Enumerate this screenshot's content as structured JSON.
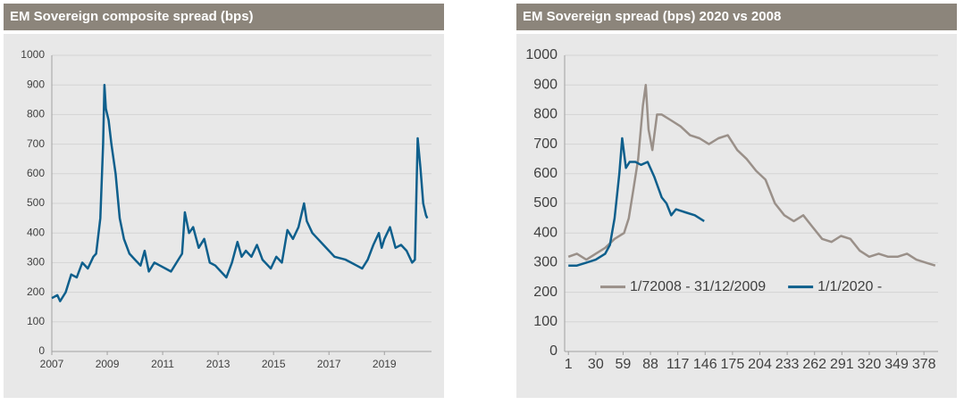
{
  "chart_data": [
    {
      "type": "line",
      "title": "EM Sovereign composite spread (bps)",
      "xlim": [
        2007,
        2020.7
      ],
      "xticks": [
        2007,
        2009,
        2011,
        2013,
        2015,
        2017,
        2019
      ],
      "ylim": [
        0,
        1000
      ],
      "yticks": [
        0,
        100,
        200,
        300,
        400,
        500,
        600,
        700,
        800,
        900,
        1000
      ],
      "grid": true,
      "series": [
        {
          "color": "#0e5f8c",
          "x": [
            2007.0,
            2007.2,
            2007.3,
            2007.5,
            2007.7,
            2007.9,
            2008.1,
            2008.3,
            2008.5,
            2008.6,
            2008.75,
            2008.85,
            2008.9,
            2008.95,
            2009.05,
            2009.15,
            2009.3,
            2009.45,
            2009.6,
            2009.8,
            2010.0,
            2010.2,
            2010.35,
            2010.5,
            2010.7,
            2010.9,
            2011.1,
            2011.3,
            2011.5,
            2011.7,
            2011.8,
            2011.95,
            2012.1,
            2012.3,
            2012.5,
            2012.7,
            2012.9,
            2013.1,
            2013.3,
            2013.5,
            2013.7,
            2013.85,
            2014.0,
            2014.2,
            2014.4,
            2014.6,
            2014.8,
            2014.9,
            2015.1,
            2015.3,
            2015.5,
            2015.7,
            2015.9,
            2016.1,
            2016.2,
            2016.4,
            2016.6,
            2016.8,
            2017.0,
            2017.2,
            2017.4,
            2017.6,
            2017.8,
            2018.0,
            2018.2,
            2018.4,
            2018.6,
            2018.8,
            2018.9,
            2019.0,
            2019.2,
            2019.4,
            2019.6,
            2019.8,
            2020.0,
            2020.1,
            2020.2,
            2020.3,
            2020.4,
            2020.5,
            2020.55
          ],
          "values": [
            180,
            190,
            170,
            200,
            260,
            250,
            300,
            280,
            320,
            330,
            450,
            700,
            900,
            820,
            780,
            700,
            600,
            450,
            380,
            330,
            310,
            290,
            340,
            270,
            300,
            290,
            280,
            270,
            300,
            330,
            470,
            400,
            420,
            350,
            380,
            300,
            290,
            270,
            250,
            300,
            370,
            320,
            340,
            320,
            360,
            310,
            290,
            280,
            320,
            300,
            410,
            380,
            420,
            500,
            440,
            400,
            380,
            360,
            340,
            320,
            315,
            310,
            300,
            290,
            280,
            310,
            360,
            400,
            350,
            380,
            420,
            350,
            360,
            340,
            300,
            310,
            720,
            620,
            500,
            460,
            450
          ]
        }
      ]
    },
    {
      "type": "line",
      "title": "EM Sovereign spread (bps) 2020 vs 2008",
      "xlim": [
        -3,
        393
      ],
      "xticks": [
        1,
        30,
        59,
        88,
        117,
        146,
        175,
        204,
        233,
        262,
        291,
        320,
        349,
        378
      ],
      "ylim": [
        0,
        1000
      ],
      "yticks": [
        0,
        100,
        200,
        300,
        400,
        500,
        600,
        700,
        800,
        900,
        1000
      ],
      "grid": true,
      "legend": "lower left",
      "series": [
        {
          "name": "1/72008 - 31/12/2009",
          "color": "#9a9089",
          "x": [
            1,
            10,
            20,
            30,
            40,
            50,
            60,
            65,
            70,
            75,
            80,
            83,
            86,
            90,
            95,
            100,
            110,
            120,
            130,
            140,
            150,
            160,
            170,
            180,
            190,
            200,
            210,
            220,
            230,
            240,
            250,
            260,
            270,
            280,
            290,
            300,
            310,
            320,
            330,
            340,
            350,
            360,
            370,
            380,
            390
          ],
          "values": [
            320,
            330,
            310,
            330,
            350,
            380,
            400,
            450,
            550,
            650,
            830,
            900,
            750,
            680,
            800,
            800,
            780,
            760,
            730,
            720,
            700,
            720,
            730,
            680,
            650,
            610,
            580,
            500,
            460,
            440,
            460,
            420,
            380,
            370,
            390,
            380,
            340,
            320,
            330,
            320,
            320,
            330,
            310,
            300,
            290
          ]
        },
        {
          "name": "1/1/2020 -",
          "color": "#0e5f8c",
          "x": [
            1,
            10,
            20,
            30,
            40,
            45,
            50,
            55,
            58,
            62,
            66,
            72,
            78,
            85,
            92,
            100,
            105,
            110,
            115,
            125,
            135,
            145
          ],
          "values": [
            290,
            290,
            300,
            310,
            330,
            360,
            450,
            600,
            720,
            620,
            640,
            640,
            630,
            640,
            590,
            520,
            500,
            460,
            480,
            470,
            460,
            440
          ]
        }
      ]
    }
  ]
}
